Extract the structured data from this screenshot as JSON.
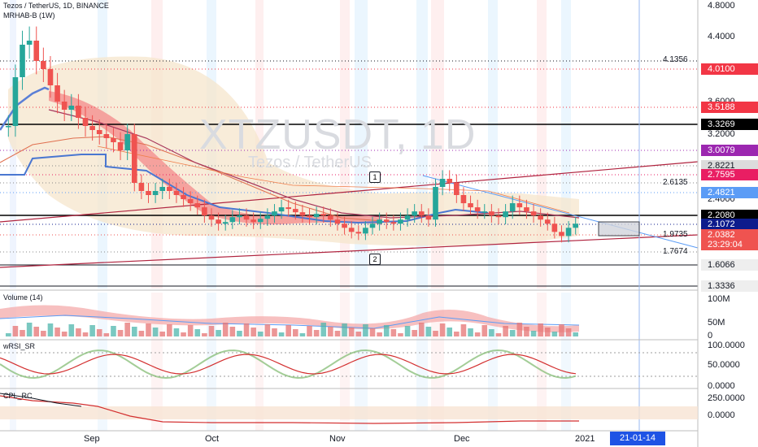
{
  "header": {
    "symbol_line": "Tezos / TetherUS, 1D, BINANCE",
    "indicator": "MRHAB-B (1W)"
  },
  "watermark": {
    "ticker": "XTZUSDT, 1D",
    "name": "Tezos / TetherUS"
  },
  "panels": {
    "volume": "Volume (14)",
    "rsi": "wRSI_SR",
    "third": "CPL_RC"
  },
  "chart_data": {
    "type": "line",
    "symbol": "XTZUSDT",
    "interval": "1D",
    "exchange": "BINANCE",
    "price_axis": [
      "4.8000",
      "4.4000",
      "3.6000",
      "3.2000",
      "2.4000"
    ],
    "time_axis": [
      "Sep",
      "Oct",
      "Nov",
      "Dec",
      "2021"
    ],
    "cursor_date": "21-01-14",
    "price_labels": [
      {
        "text": "4.0100",
        "color": "#f23645",
        "style": "fill"
      },
      {
        "text": "3.5188",
        "color": "#f23645",
        "style": "fill"
      },
      {
        "text": "3.3269",
        "color": "#000000",
        "style": "fill"
      },
      {
        "text": "3.0079",
        "color": "#9c27b0",
        "style": "fill"
      },
      {
        "text": "2.8221",
        "color": "#e0e0e0",
        "style": "light"
      },
      {
        "text": "2.7595",
        "color": "#e91e63",
        "style": "fill"
      },
      {
        "text": "2.4821",
        "color": "#5b9cf6",
        "style": "fill"
      },
      {
        "text": "2.2080",
        "color": "#000000",
        "style": "fill"
      },
      {
        "text": "2.1072",
        "color": "#0d1b8c",
        "style": "fill"
      },
      {
        "text": "2.0382",
        "color": "#ef5350",
        "style": "fill"
      },
      {
        "text": "23:29:04",
        "color": "#ef5350",
        "style": "fill"
      },
      {
        "text": "1.6066",
        "color": "#f0f0f0",
        "style": "light"
      },
      {
        "text": "1.3336",
        "color": "#f0f0f0",
        "style": "light"
      }
    ],
    "level_labels": [
      "4.1356",
      "2.6135",
      "1.9735",
      "1.7674"
    ],
    "callouts": [
      "1",
      "2"
    ],
    "volume_axis": [
      "100M",
      "50M",
      "0"
    ],
    "rsi_axis": [
      "100.0000",
      "50.0000",
      "0.0000"
    ],
    "third_axis": [
      "250.0000",
      "0.0000"
    ],
    "close": [
      3.3,
      3.9,
      4.3,
      4.35,
      4.1,
      4.0,
      3.8,
      3.6,
      3.5,
      3.55,
      3.4,
      3.3,
      3.25,
      3.2,
      3.15,
      3.1,
      3.0,
      3.2,
      2.6,
      2.5,
      2.45,
      2.5,
      2.55,
      2.5,
      2.45,
      2.4,
      2.35,
      2.3,
      2.2,
      2.15,
      2.1,
      2.12,
      2.18,
      2.2,
      2.15,
      2.12,
      2.16,
      2.2,
      2.25,
      2.3,
      2.28,
      2.24,
      2.2,
      2.18,
      2.22,
      2.2,
      2.15,
      2.1,
      2.05,
      2.0,
      1.98,
      2.05,
      2.1,
      2.15,
      2.12,
      2.1,
      2.15,
      2.2,
      2.25,
      2.2,
      2.15,
      2.55,
      2.65,
      2.6,
      2.45,
      2.35,
      2.3,
      2.25,
      2.25,
      2.2,
      2.18,
      2.25,
      2.35,
      2.3,
      2.25,
      2.2,
      2.15,
      2.1,
      2.0,
      1.95,
      2.05,
      2.1
    ],
    "colors": {
      "up": "#26a69a",
      "down": "#ef5350",
      "accent": "#2962ff"
    }
  }
}
